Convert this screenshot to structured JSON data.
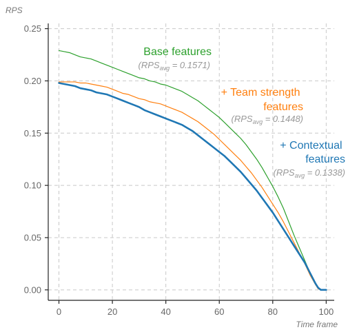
{
  "chart_data": {
    "type": "line",
    "ylabel": "RPS",
    "xlabel": "Time frame",
    "xlim": [
      -4,
      103
    ],
    "ylim": [
      -0.01,
      0.255
    ],
    "xticks": [
      0,
      20,
      40,
      60,
      80,
      100
    ],
    "yticks": [
      0.0,
      0.05,
      0.1,
      0.15,
      0.2,
      0.25
    ],
    "ytick_labels": [
      "0.00",
      "0.05",
      "0.10",
      "0.15",
      "0.20",
      "0.25"
    ],
    "grid": true,
    "series": [
      {
        "name": "Base features",
        "avg_prefix": "(RPS",
        "avg_sub": "avg",
        "avg_suffix": " = 0.1571)",
        "color": "#2ca02c",
        "width": 1.2,
        "x": [
          0,
          2,
          4,
          6,
          8,
          10,
          12,
          14,
          16,
          18,
          20,
          22,
          24,
          26,
          28,
          30,
          32,
          34,
          36,
          38,
          40,
          42,
          44,
          46,
          48,
          50,
          52,
          54,
          56,
          58,
          60,
          62,
          64,
          66,
          68,
          70,
          72,
          74,
          76,
          78,
          80,
          82,
          84,
          86,
          88,
          90,
          92,
          94,
          96,
          97,
          98,
          99,
          100
        ],
        "y": [
          0.229,
          0.228,
          0.227,
          0.225,
          0.223,
          0.222,
          0.221,
          0.219,
          0.217,
          0.215,
          0.213,
          0.211,
          0.209,
          0.207,
          0.205,
          0.203,
          0.202,
          0.2,
          0.199,
          0.197,
          0.196,
          0.194,
          0.192,
          0.19,
          0.187,
          0.184,
          0.181,
          0.177,
          0.173,
          0.169,
          0.165,
          0.16,
          0.155,
          0.15,
          0.145,
          0.139,
          0.132,
          0.125,
          0.117,
          0.108,
          0.099,
          0.089,
          0.078,
          0.065,
          0.052,
          0.04,
          0.028,
          0.016,
          0.006,
          0.002,
          0.0,
          0.0,
          0.0
        ]
      },
      {
        "name": "+ Team strength features",
        "label_lines": [
          "+ Team strength",
          "features"
        ],
        "avg_prefix": "(RPS",
        "avg_sub": "avg",
        "avg_suffix": " = 0.1448)",
        "color": "#ff7f0e",
        "width": 1.2,
        "x": [
          0,
          2,
          4,
          6,
          8,
          10,
          12,
          14,
          16,
          18,
          20,
          22,
          24,
          26,
          28,
          30,
          32,
          34,
          36,
          38,
          40,
          42,
          44,
          46,
          48,
          50,
          52,
          54,
          56,
          58,
          60,
          62,
          64,
          66,
          68,
          70,
          72,
          74,
          76,
          78,
          80,
          82,
          84,
          86,
          88,
          90,
          92,
          94,
          96,
          97,
          98,
          99,
          100
        ],
        "y": [
          0.199,
          0.199,
          0.199,
          0.199,
          0.198,
          0.198,
          0.197,
          0.196,
          0.195,
          0.194,
          0.192,
          0.19,
          0.188,
          0.187,
          0.185,
          0.183,
          0.182,
          0.18,
          0.179,
          0.178,
          0.176,
          0.174,
          0.172,
          0.17,
          0.167,
          0.164,
          0.161,
          0.157,
          0.153,
          0.149,
          0.144,
          0.139,
          0.134,
          0.129,
          0.124,
          0.118,
          0.112,
          0.105,
          0.098,
          0.09,
          0.082,
          0.074,
          0.065,
          0.055,
          0.045,
          0.035,
          0.025,
          0.014,
          0.005,
          0.001,
          0.0,
          0.0,
          0.0
        ]
      },
      {
        "name": "+ Contextual features",
        "label_lines": [
          "+ Contextual",
          "features"
        ],
        "avg_prefix": "(RPS",
        "avg_sub": "avg",
        "avg_suffix": " = 0.1338)",
        "color": "#1f77b4",
        "width": 2.6,
        "x": [
          0,
          2,
          4,
          6,
          8,
          10,
          12,
          14,
          16,
          18,
          20,
          22,
          24,
          26,
          28,
          30,
          32,
          34,
          36,
          38,
          40,
          42,
          44,
          46,
          48,
          50,
          52,
          54,
          56,
          58,
          60,
          62,
          64,
          66,
          68,
          70,
          72,
          74,
          76,
          78,
          80,
          82,
          84,
          86,
          88,
          90,
          92,
          94,
          96,
          97,
          98,
          99,
          100
        ],
        "y": [
          0.198,
          0.197,
          0.196,
          0.195,
          0.193,
          0.192,
          0.191,
          0.189,
          0.188,
          0.187,
          0.185,
          0.183,
          0.181,
          0.179,
          0.177,
          0.175,
          0.172,
          0.17,
          0.168,
          0.166,
          0.164,
          0.162,
          0.16,
          0.158,
          0.155,
          0.152,
          0.148,
          0.144,
          0.14,
          0.136,
          0.132,
          0.128,
          0.123,
          0.118,
          0.113,
          0.107,
          0.101,
          0.095,
          0.088,
          0.081,
          0.074,
          0.066,
          0.058,
          0.05,
          0.042,
          0.034,
          0.026,
          0.016,
          0.006,
          0.002,
          0.0,
          0.0,
          0.0
        ]
      }
    ]
  }
}
